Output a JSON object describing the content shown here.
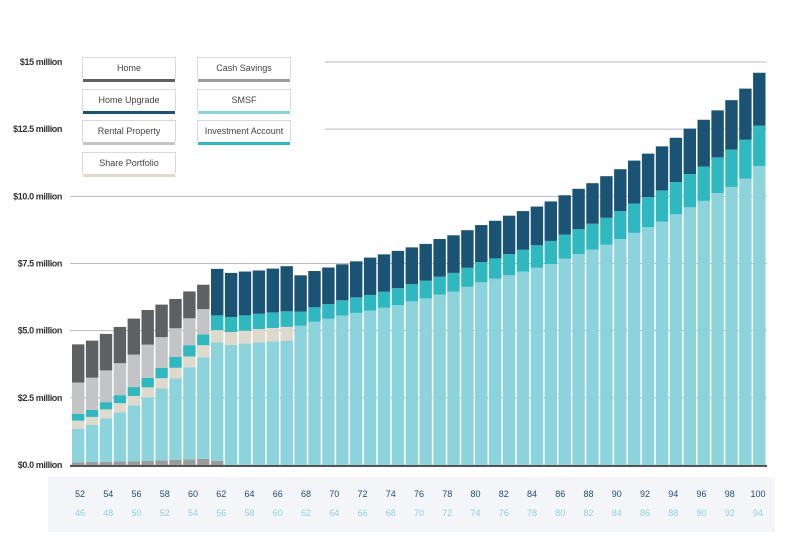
{
  "chart_data": {
    "type": "bar",
    "stacked": true,
    "y_tick_labels": [
      "$0.0 million",
      "$2.5 million",
      "$5.0 million",
      "$7.5 million",
      "$10.0 million",
      "$12.5 million",
      "$15 million"
    ],
    "y_tick_values": [
      0,
      2.5,
      5,
      7.5,
      10,
      12.5,
      15
    ],
    "ylim": [
      0,
      15
    ],
    "x_primary_label_ages": [
      "52",
      "54",
      "56",
      "58",
      "60",
      "62",
      "64",
      "66",
      "68",
      "70",
      "72",
      "74",
      "76",
      "78",
      "80",
      "82",
      "84",
      "86",
      "88",
      "90",
      "92",
      "94",
      "96",
      "98",
      "100"
    ],
    "x_secondary_label_ages": [
      "46",
      "48",
      "50",
      "52",
      "54",
      "56",
      "58",
      "60",
      "62",
      "64",
      "66",
      "68",
      "70",
      "72",
      "74",
      "76",
      "78",
      "80",
      "82",
      "84",
      "86",
      "88",
      "90",
      "92",
      "94"
    ],
    "legend": [
      {
        "name": "Home",
        "color": "#5f6062"
      },
      {
        "name": "Cash Savings",
        "color": "#9a9b9d"
      },
      {
        "name": "Home Upgrade",
        "color": "#1a5373"
      },
      {
        "name": "SMSF",
        "color": "#8dd3db"
      },
      {
        "name": "Rental Property",
        "color": "#c3c4c6"
      },
      {
        "name": "Investment Account",
        "color": "#2fb8bf"
      },
      {
        "name": "Share Portfolio",
        "color": "#ddd9cc"
      }
    ],
    "ages": [
      51,
      52,
      53,
      54,
      55,
      56,
      57,
      58,
      59,
      60,
      61,
      62,
      63,
      64,
      65,
      66,
      67,
      68,
      69,
      70,
      71,
      72,
      73,
      74,
      75,
      76,
      77,
      78,
      79,
      80,
      81,
      82,
      83,
      84,
      85,
      86,
      87,
      88,
      89,
      90,
      91,
      92,
      93,
      94,
      95,
      96,
      97,
      98,
      99,
      100
    ],
    "series": [
      {
        "name": "Cash Savings",
        "color": "#9a9b9d",
        "values": [
          0.1,
          0.11,
          0.12,
          0.13,
          0.14,
          0.15,
          0.17,
          0.19,
          0.21,
          0.23,
          0.16,
          0,
          0,
          0,
          0,
          0,
          0,
          0,
          0,
          0,
          0,
          0,
          0,
          0,
          0,
          0,
          0,
          0,
          0,
          0,
          0,
          0,
          0,
          0,
          0,
          0,
          0,
          0,
          0,
          0,
          0,
          0,
          0,
          0,
          0,
          0,
          0,
          0,
          0,
          0
        ]
      },
      {
        "name": "SMSF",
        "color": "#8dd3db",
        "values": [
          1.24,
          1.38,
          1.62,
          1.83,
          2.08,
          2.37,
          2.68,
          3.03,
          3.43,
          3.78,
          4.4,
          4.47,
          4.52,
          4.57,
          4.6,
          4.63,
          5.18,
          5.33,
          5.44,
          5.56,
          5.66,
          5.75,
          5.85,
          5.95,
          6.09,
          6.2,
          6.34,
          6.45,
          6.63,
          6.8,
          6.93,
          7.06,
          7.2,
          7.34,
          7.48,
          7.68,
          7.85,
          8.02,
          8.2,
          8.41,
          8.64,
          8.85,
          9.06,
          9.33,
          9.59,
          9.83,
          10.12,
          10.35,
          10.66,
          11.13
        ]
      },
      {
        "name": "Share Portfolio",
        "color": "#ddd9cc",
        "values": [
          0.31,
          0.3,
          0.33,
          0.34,
          0.35,
          0.37,
          0.38,
          0.4,
          0.4,
          0.45,
          0.46,
          0.48,
          0.48,
          0.49,
          0.5,
          0.51,
          0,
          0,
          0,
          0,
          0,
          0,
          0,
          0,
          0,
          0,
          0,
          0,
          0,
          0,
          0,
          0,
          0,
          0,
          0,
          0,
          0,
          0,
          0,
          0,
          0,
          0,
          0,
          0,
          0,
          0,
          0,
          0,
          0,
          0
        ]
      },
      {
        "name": "Investment Account",
        "color": "#2fb8bf",
        "values": [
          0.25,
          0.26,
          0.27,
          0.3,
          0.33,
          0.35,
          0.38,
          0.4,
          0.42,
          0.4,
          0.55,
          0.56,
          0.57,
          0.57,
          0.58,
          0.58,
          0.53,
          0.54,
          0.55,
          0.57,
          0.58,
          0.58,
          0.6,
          0.63,
          0.64,
          0.66,
          0.67,
          0.7,
          0.71,
          0.75,
          0.76,
          0.79,
          0.81,
          0.84,
          0.86,
          0.9,
          0.93,
          0.96,
          1.0,
          1.04,
          1.09,
          1.12,
          1.16,
          1.2,
          1.24,
          1.28,
          1.33,
          1.39,
          1.45,
          1.5
        ]
      },
      {
        "name": "Rental Property",
        "color": "#c3c4c6",
        "values": [
          1.17,
          1.2,
          1.18,
          1.19,
          1.21,
          1.24,
          1.15,
          1.07,
          1.0,
          0.94,
          0,
          0,
          0,
          0,
          0,
          0,
          0,
          0,
          0,
          0,
          0,
          0,
          0,
          0,
          0,
          0,
          0,
          0,
          0,
          0,
          0,
          0,
          0,
          0,
          0,
          0,
          0,
          0,
          0,
          0,
          0,
          0,
          0,
          0,
          0,
          0,
          0,
          0,
          0,
          0
        ]
      },
      {
        "name": "Home Upgrade",
        "color": "#1a5373",
        "values": [
          0,
          0,
          0,
          0,
          0,
          0,
          0,
          0,
          0,
          0,
          1.73,
          1.64,
          1.63,
          1.61,
          1.63,
          1.68,
          1.35,
          1.35,
          1.36,
          1.34,
          1.34,
          1.39,
          1.39,
          1.39,
          1.37,
          1.37,
          1.4,
          1.4,
          1.4,
          1.38,
          1.4,
          1.43,
          1.44,
          1.44,
          1.47,
          1.46,
          1.5,
          1.51,
          1.55,
          1.56,
          1.6,
          1.62,
          1.64,
          1.65,
          1.69,
          1.74,
          1.75,
          1.84,
          1.9,
          1.97
        ]
      },
      {
        "name": "Home",
        "color": "#5f6062",
        "values": [
          1.42,
          1.38,
          1.36,
          1.35,
          1.34,
          1.29,
          1.21,
          1.09,
          1.0,
          0.91,
          0,
          0,
          0,
          0,
          0,
          0,
          0,
          0,
          0,
          0,
          0,
          0,
          0,
          0,
          0,
          0,
          0,
          0,
          0,
          0,
          0,
          0,
          0,
          0,
          0,
          0,
          0,
          0,
          0,
          0,
          0,
          0,
          0,
          0,
          0,
          0,
          0,
          0,
          0,
          0
        ]
      }
    ]
  }
}
